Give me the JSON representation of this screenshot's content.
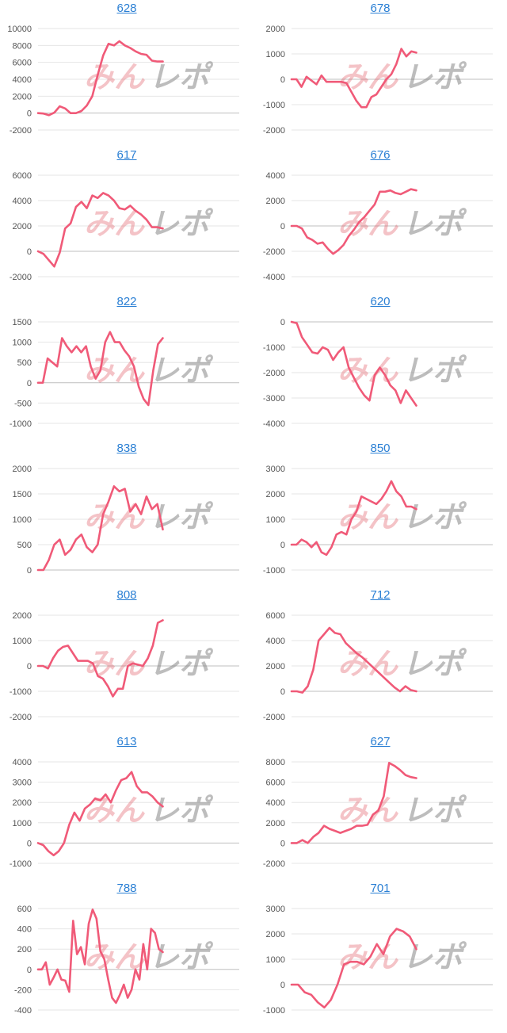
{
  "watermark": {
    "part1": "みん",
    "part2": "レポ"
  },
  "colors": {
    "line": "#f05a78",
    "grid": "#e6e6e6",
    "zero": "#bfbfbf",
    "title": "#2a7fd4",
    "ticks": "#555555"
  },
  "chart_data": [
    {
      "type": "line",
      "title": "628",
      "ylim": [
        -2000,
        10000
      ],
      "yticks": [
        -2000,
        0,
        2000,
        4000,
        6000,
        8000,
        10000
      ],
      "values": [
        0,
        -50,
        -250,
        50,
        800,
        550,
        0,
        0,
        250,
        900,
        2000,
        4500,
        6800,
        8200,
        8000,
        8500,
        8000,
        7700,
        7300,
        7000,
        6900,
        6200,
        6100,
        6100
      ]
    },
    {
      "type": "line",
      "title": "678",
      "ylim": [
        -2000,
        2000
      ],
      "yticks": [
        -2000,
        -1000,
        0,
        1000,
        2000
      ],
      "values": [
        0,
        0,
        -300,
        100,
        -50,
        -200,
        150,
        -100,
        -100,
        -100,
        -100,
        -150,
        -500,
        -850,
        -1100,
        -1100,
        -700,
        -600,
        -300,
        0,
        200,
        600,
        1200,
        900,
        1100,
        1050
      ]
    },
    {
      "type": "line",
      "title": "617",
      "ylim": [
        -2000,
        6000
      ],
      "yticks": [
        -2000,
        0,
        2000,
        4000,
        6000
      ],
      "values": [
        0,
        -200,
        -700,
        -1200,
        -100,
        1800,
        2200,
        3500,
        3900,
        3400,
        4400,
        4200,
        4600,
        4400,
        4000,
        3400,
        3300,
        3600,
        3200,
        2900,
        2500,
        1900,
        1900,
        1800
      ]
    },
    {
      "type": "line",
      "title": "676",
      "ylim": [
        -4000,
        4000
      ],
      "yticks": [
        -4000,
        -2000,
        0,
        2000,
        4000
      ],
      "values": [
        0,
        0,
        -200,
        -900,
        -1100,
        -1400,
        -1300,
        -1800,
        -2200,
        -1900,
        -1500,
        -800,
        -300,
        300,
        700,
        1200,
        1700,
        2700,
        2700,
        2800,
        2600,
        2500,
        2700,
        2900,
        2800
      ]
    },
    {
      "type": "line",
      "title": "822",
      "ylim": [
        -1000,
        1500
      ],
      "yticks": [
        -1000,
        -500,
        0,
        500,
        1000,
        1500
      ],
      "values": [
        0,
        0,
        600,
        500,
        400,
        1100,
        900,
        750,
        900,
        750,
        900,
        400,
        100,
        300,
        1000,
        1250,
        1000,
        1000,
        800,
        650,
        400,
        -100,
        -400,
        -550,
        300,
        950,
        1100
      ]
    },
    {
      "type": "line",
      "title": "620",
      "ylim": [
        -4000,
        0
      ],
      "yticks": [
        -4000,
        -3000,
        -2000,
        -1000,
        0
      ],
      "values": [
        0,
        -50,
        -600,
        -900,
        -1200,
        -1250,
        -1000,
        -1100,
        -1500,
        -1200,
        -1000,
        -1800,
        -2200,
        -2600,
        -2900,
        -3100,
        -2100,
        -1800,
        -2100,
        -2500,
        -2700,
        -3200,
        -2700,
        -3000,
        -3300
      ]
    },
    {
      "type": "line",
      "title": "838",
      "ylim": [
        0,
        2000
      ],
      "yticks": [
        0,
        500,
        1000,
        1500,
        2000
      ],
      "values": [
        0,
        0,
        200,
        500,
        600,
        300,
        400,
        600,
        700,
        450,
        350,
        500,
        1100,
        1350,
        1650,
        1550,
        1600,
        1150,
        1300,
        1100,
        1450,
        1200,
        1300,
        800
      ]
    },
    {
      "type": "line",
      "title": "850",
      "ylim": [
        -1000,
        3000
      ],
      "yticks": [
        -1000,
        0,
        1000,
        2000,
        3000
      ],
      "values": [
        0,
        0,
        200,
        100,
        -100,
        100,
        -300,
        -400,
        -100,
        400,
        500,
        400,
        1000,
        1300,
        1900,
        1800,
        1700,
        1600,
        1800,
        2100,
        2500,
        2100,
        1900,
        1500,
        1500,
        1400
      ]
    },
    {
      "type": "line",
      "title": "808",
      "ylim": [
        -2000,
        2000
      ],
      "yticks": [
        -2000,
        -1000,
        0,
        1000,
        2000
      ],
      "values": [
        0,
        0,
        -100,
        300,
        600,
        750,
        800,
        500,
        200,
        200,
        200,
        100,
        -400,
        -500,
        -800,
        -1200,
        -900,
        -900,
        0,
        100,
        50,
        0,
        300,
        800,
        1700,
        1800
      ]
    },
    {
      "type": "line",
      "title": "712",
      "ylim": [
        -2000,
        6000
      ],
      "yticks": [
        -2000,
        0,
        2000,
        4000,
        6000
      ],
      "values": [
        0,
        0,
        -100,
        400,
        1700,
        4000,
        4500,
        5000,
        4600,
        4500,
        3800,
        3400,
        3000,
        2700,
        2300,
        1900,
        1500,
        1100,
        700,
        300,
        0,
        400,
        100,
        0
      ]
    },
    {
      "type": "line",
      "title": "613",
      "ylim": [
        -1000,
        4000
      ],
      "yticks": [
        -1000,
        0,
        1000,
        2000,
        3000,
        4000
      ],
      "values": [
        0,
        -100,
        -400,
        -600,
        -400,
        0,
        900,
        1500,
        1100,
        1700,
        1900,
        2200,
        2100,
        2400,
        2000,
        2600,
        3100,
        3200,
        3500,
        2800,
        2500,
        2500,
        2300,
        2000,
        1800
      ]
    },
    {
      "type": "line",
      "title": "627",
      "ylim": [
        -2000,
        8000
      ],
      "yticks": [
        -2000,
        0,
        2000,
        4000,
        6000,
        8000
      ],
      "values": [
        0,
        0,
        300,
        0,
        600,
        1000,
        1700,
        1400,
        1200,
        1000,
        1200,
        1400,
        1700,
        1700,
        1800,
        2800,
        3200,
        4600,
        7900,
        7600,
        7200,
        6700,
        6500,
        6400
      ]
    },
    {
      "type": "line",
      "title": "788",
      "ylim": [
        -400,
        600
      ],
      "yticks": [
        -400,
        -200,
        0,
        200,
        400,
        600
      ],
      "values": [
        0,
        0,
        70,
        -150,
        -80,
        0,
        -100,
        -110,
        -220,
        480,
        150,
        220,
        50,
        450,
        590,
        500,
        180,
        100,
        -100,
        -280,
        -330,
        -250,
        -150,
        -280,
        -200,
        0,
        -100,
        250,
        0,
        400,
        360,
        200,
        170
      ]
    },
    {
      "type": "line",
      "title": "701",
      "ylim": [
        -1000,
        3000
      ],
      "yticks": [
        -1000,
        0,
        1000,
        2000,
        3000
      ],
      "values": [
        0,
        0,
        -300,
        -400,
        -700,
        -900,
        -600,
        0,
        800,
        900,
        900,
        800,
        1100,
        1600,
        1200,
        1900,
        2200,
        2100,
        1900,
        1400
      ]
    }
  ]
}
